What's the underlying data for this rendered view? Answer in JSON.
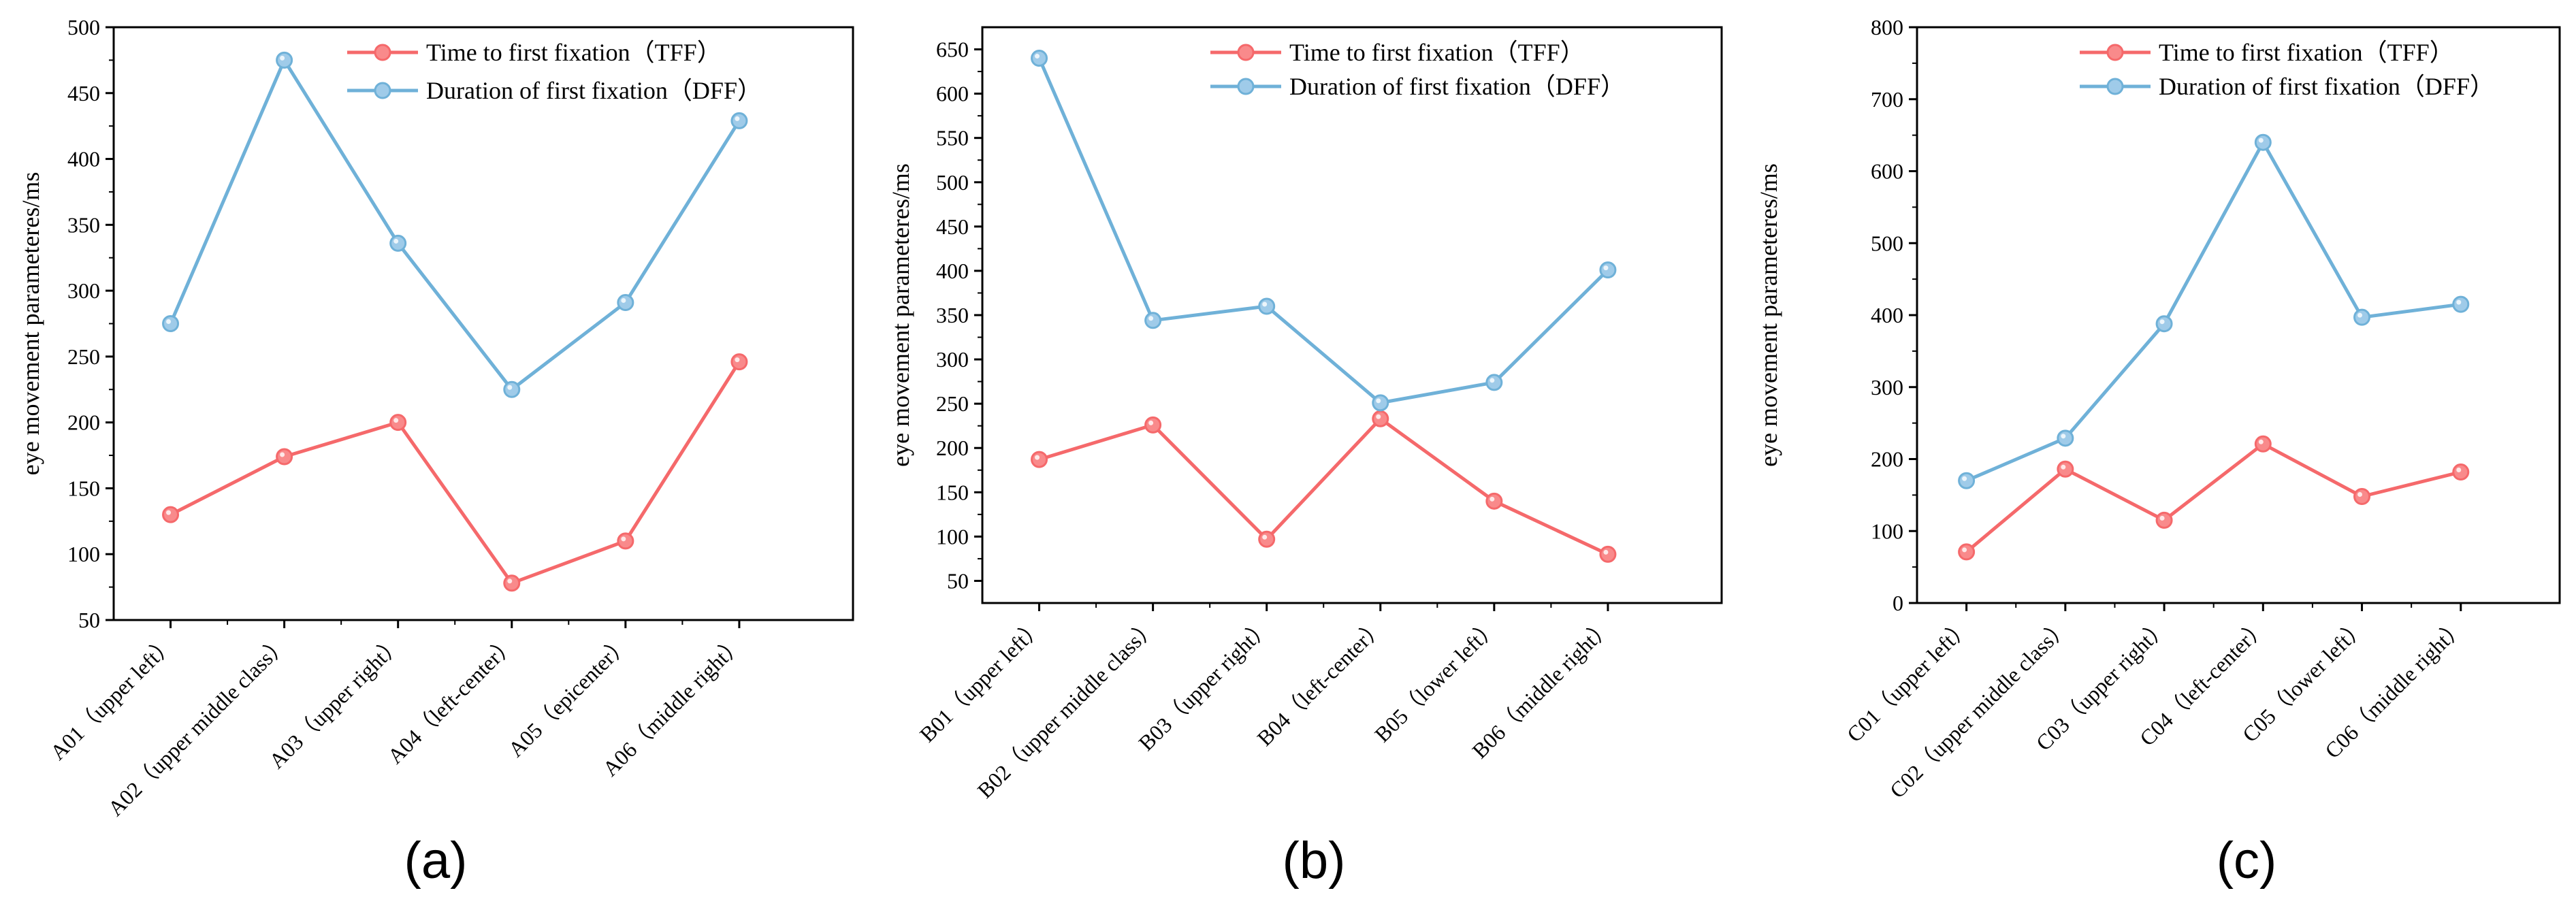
{
  "figure": {
    "subfigure_labels": [
      "(a)",
      "(b)",
      "(c)"
    ]
  },
  "colors": {
    "tff": "#f5696b",
    "tff_marker": "#f98a8b",
    "dff": "#6fb1d8",
    "dff_marker": "#9fcbe9",
    "axis": "#000000"
  },
  "chart_data": [
    {
      "type": "line",
      "panel": "(a)",
      "ylabel": "eye movement parameteres/ms",
      "xlabel": "",
      "ylim": [
        50,
        500
      ],
      "yticks": [
        50,
        100,
        150,
        200,
        250,
        300,
        350,
        400,
        450,
        500
      ],
      "grid": false,
      "legend_position": "top-right",
      "categories": [
        "A01（upper left）",
        "A02（upper middle class）",
        "A03（upper right）",
        "A04（left-center）",
        "A05（epicenter）",
        "A06（middle right）"
      ],
      "series": [
        {
          "name": "Time to first fixation（TFF）",
          "key": "tff",
          "values": [
            130,
            174,
            200,
            78,
            110,
            246
          ]
        },
        {
          "name": "Duration of first fixation（DFF）",
          "key": "dff",
          "values": [
            275,
            475,
            336,
            225,
            291,
            429
          ]
        }
      ]
    },
    {
      "type": "line",
      "panel": "(b)",
      "ylabel": "eye movement parameteres/ms",
      "xlabel": "",
      "ylim": [
        25,
        675
      ],
      "yticks": [
        50,
        100,
        150,
        200,
        250,
        300,
        350,
        400,
        450,
        500,
        550,
        600,
        650
      ],
      "grid": false,
      "legend_position": "top-right",
      "categories": [
        "B01（upper left）",
        "B02（upper middle class）",
        "B03（upper right）",
        "B04（left-center）",
        "B05（lower left）",
        "B06（middle right）"
      ],
      "series": [
        {
          "name": "Time to first fixation（TFF）",
          "key": "tff",
          "values": [
            187,
            226,
            97,
            233,
            140,
            80
          ]
        },
        {
          "name": "Duration of first fixation（DFF）",
          "key": "dff",
          "values": [
            640,
            344,
            360,
            251,
            274,
            401
          ]
        }
      ]
    },
    {
      "type": "line",
      "panel": "(c)",
      "ylabel": "eye movement parameteres/ms",
      "xlabel": "",
      "ylim": [
        0,
        800
      ],
      "yticks": [
        0,
        100,
        200,
        300,
        400,
        500,
        600,
        700,
        800
      ],
      "grid": false,
      "legend_position": "top-right",
      "categories": [
        "C01（upper left）",
        "C02（upper middle class）",
        "C03（upper right）",
        "C04（left-center）",
        "C05（lower left）",
        "C06（middle right）"
      ],
      "series": [
        {
          "name": "Time to first fixation（TFF）",
          "key": "tff",
          "values": [
            71,
            186,
            115,
            221,
            148,
            182
          ]
        },
        {
          "name": "Duration of first fixation（DFF）",
          "key": "dff",
          "values": [
            170,
            229,
            388,
            640,
            397,
            415
          ]
        }
      ]
    }
  ]
}
